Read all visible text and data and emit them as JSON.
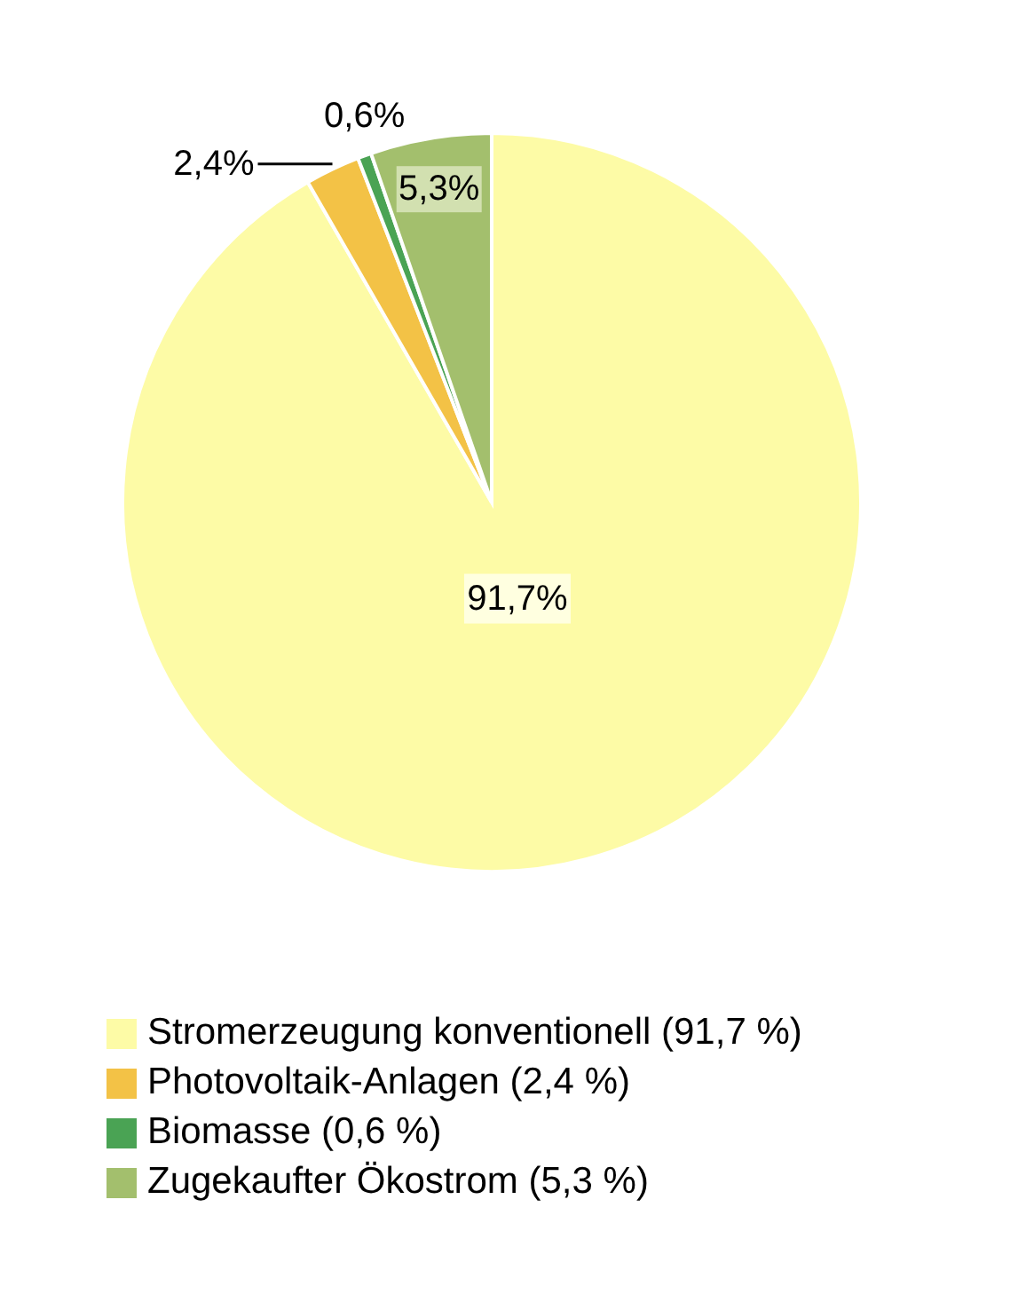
{
  "chart_data": {
    "type": "pie",
    "categories": [
      "Stromerzeugung konventionell (91,7 %)",
      "Photovoltaik-Anlagen (2,4 %)",
      "Biomasse (0,6 %)",
      "Zugekaufter Ökostrom (5,3 %)"
    ],
    "values": [
      91.7,
      2.4,
      0.6,
      5.3
    ],
    "colors": [
      "#fdfba6",
      "#f3c246",
      "#4aa354",
      "#a3bf6d"
    ],
    "value_labels": [
      "91,7%",
      "2,4%",
      "0,6%",
      "5,3%"
    ],
    "legend": "bottom"
  }
}
